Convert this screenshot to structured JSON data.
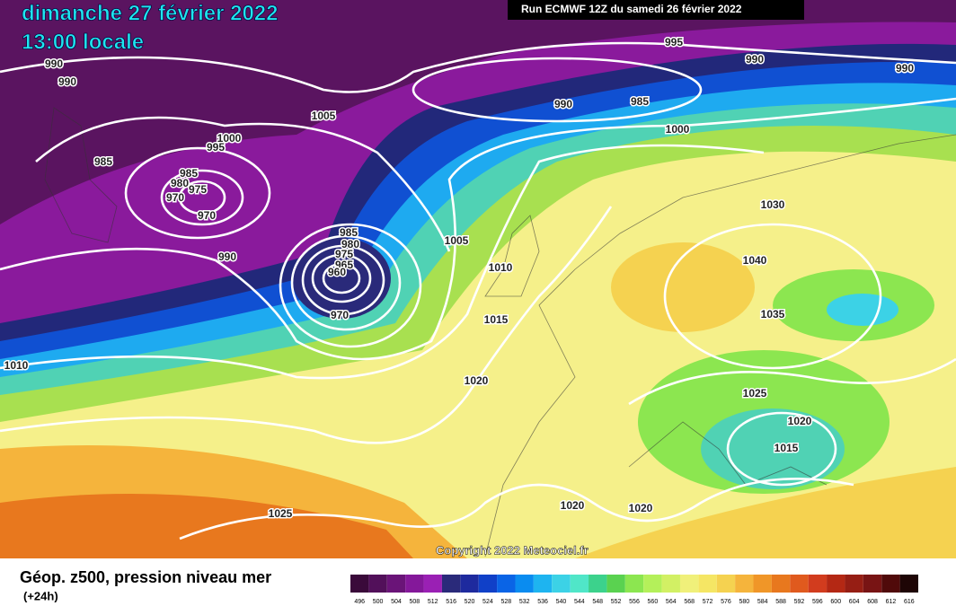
{
  "map": {
    "date": "dimanche 27 février 2022",
    "time": "13:00 locale",
    "run": "Run ECMWF 12Z du samedi 26 février 2022",
    "copyright": "Copyright 2022 Meteociel.fr",
    "caption": "Géop. z500, pression niveau mer",
    "lead": "(+24h)",
    "isobar_labels": [
      990,
      990,
      995,
      990,
      990,
      990,
      985,
      1005,
      1000,
      995,
      1000,
      985,
      985,
      980,
      975,
      970,
      970,
      990,
      985,
      980,
      975,
      965,
      960,
      970,
      1005,
      1010,
      1015,
      1030,
      1040,
      1035,
      1010,
      1020,
      1025,
      1020,
      1015,
      1025,
      1020,
      1020
    ],
    "colorbar": {
      "labels": [
        496,
        500,
        504,
        508,
        512,
        516,
        520,
        524,
        528,
        532,
        536,
        540,
        544,
        548,
        552,
        556,
        560,
        564,
        568,
        572,
        576,
        580,
        584,
        588,
        592,
        596,
        600,
        604,
        608,
        612,
        616
      ],
      "colors": [
        "#3a0a3a",
        "#52105a",
        "#6a1478",
        "#84189a",
        "#9a20b4",
        "#2a2a7a",
        "#1e2a9e",
        "#1040c8",
        "#0a64e6",
        "#0a8cf0",
        "#1eb4f0",
        "#3cd2e6",
        "#50e6c8",
        "#3cd28c",
        "#5ad250",
        "#8ce650",
        "#b4f05a",
        "#d2f064",
        "#f0f07a",
        "#f5e664",
        "#f5d250",
        "#f5b43c",
        "#f09628",
        "#e8781e",
        "#e05a1e",
        "#d23c1e",
        "#b42814",
        "#961e14",
        "#781414",
        "#500a0a",
        "#1e0505"
      ]
    }
  }
}
